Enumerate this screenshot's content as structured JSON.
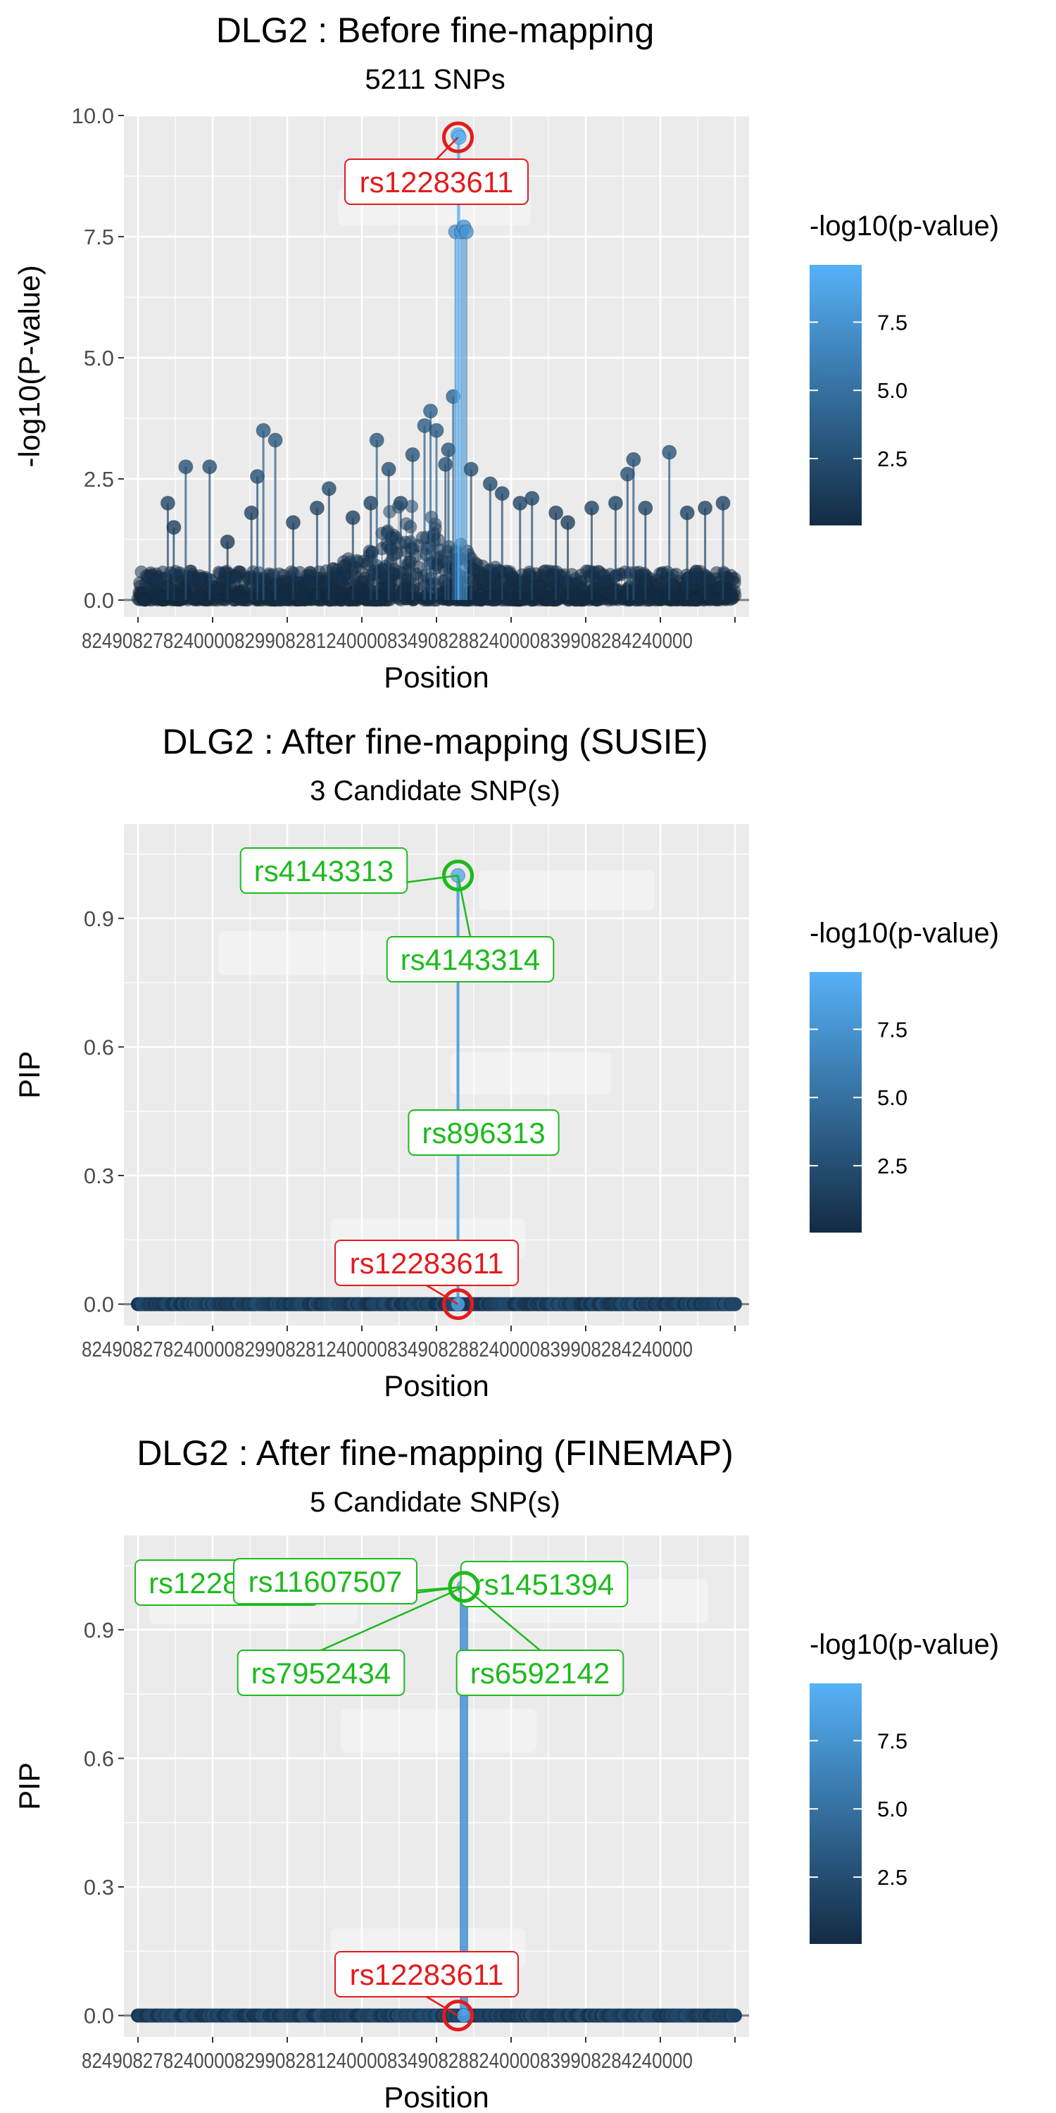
{
  "legend": {
    "title": "-log10(p-value)",
    "ticks": [
      2.5,
      5.0,
      7.5
    ],
    "range": [
      0.05,
      9.6
    ],
    "colors": {
      "low": "#132B43",
      "high": "#56B1F7"
    }
  },
  "chart_data": [
    {
      "type": "scatter",
      "title": "DLG2 : Before fine-mapping",
      "subtitle": "5211 SNPs",
      "xlabel": "Position",
      "ylabel": "-log10(P-value)",
      "ylim": [
        -0.35,
        10.0
      ],
      "y_ticks": [
        0.0,
        2.5,
        5.0,
        7.5,
        10.0
      ],
      "y_tick_labels": [
        "0.0",
        "2.5",
        "5.0",
        "7.5",
        "10.0"
      ],
      "x_tick_text": "824908278240000829908281240000834908288240000839908284240000",
      "grid": true,
      "legend_position": "right",
      "points": [
        {
          "x": 0.05,
          "y": 2.0
        },
        {
          "x": 0.06,
          "y": 1.5
        },
        {
          "x": 0.08,
          "y": 2.75
        },
        {
          "x": 0.12,
          "y": 2.75
        },
        {
          "x": 0.15,
          "y": 1.2
        },
        {
          "x": 0.19,
          "y": 1.8
        },
        {
          "x": 0.2,
          "y": 2.55
        },
        {
          "x": 0.21,
          "y": 3.5
        },
        {
          "x": 0.23,
          "y": 3.3
        },
        {
          "x": 0.26,
          "y": 1.6
        },
        {
          "x": 0.3,
          "y": 1.9
        },
        {
          "x": 0.32,
          "y": 2.3
        },
        {
          "x": 0.36,
          "y": 1.7
        },
        {
          "x": 0.39,
          "y": 2.0
        },
        {
          "x": 0.4,
          "y": 3.3
        },
        {
          "x": 0.42,
          "y": 2.7
        },
        {
          "x": 0.44,
          "y": 2.0
        },
        {
          "x": 0.46,
          "y": 3.0
        },
        {
          "x": 0.48,
          "y": 3.6
        },
        {
          "x": 0.49,
          "y": 3.9
        },
        {
          "x": 0.5,
          "y": 3.5
        },
        {
          "x": 0.515,
          "y": 2.8
        },
        {
          "x": 0.52,
          "y": 3.1
        },
        {
          "x": 0.528,
          "y": 4.2
        },
        {
          "x": 0.532,
          "y": 7.6
        },
        {
          "x": 0.536,
          "y": 9.6
        },
        {
          "x": 0.538,
          "y": 9.55
        },
        {
          "x": 0.542,
          "y": 7.6
        },
        {
          "x": 0.546,
          "y": 7.7
        },
        {
          "x": 0.55,
          "y": 7.6
        },
        {
          "x": 0.558,
          "y": 2.7
        },
        {
          "x": 0.59,
          "y": 2.4
        },
        {
          "x": 0.61,
          "y": 2.2
        },
        {
          "x": 0.64,
          "y": 2.0
        },
        {
          "x": 0.66,
          "y": 2.1
        },
        {
          "x": 0.7,
          "y": 1.8
        },
        {
          "x": 0.72,
          "y": 1.6
        },
        {
          "x": 0.76,
          "y": 1.9
        },
        {
          "x": 0.8,
          "y": 2.0
        },
        {
          "x": 0.82,
          "y": 2.6
        },
        {
          "x": 0.83,
          "y": 2.9
        },
        {
          "x": 0.85,
          "y": 1.9
        },
        {
          "x": 0.89,
          "y": 3.05
        },
        {
          "x": 0.92,
          "y": 1.8
        },
        {
          "x": 0.95,
          "y": 1.9
        },
        {
          "x": 0.98,
          "y": 2.0
        }
      ],
      "highlights": [
        {
          "label": "rs12283611",
          "x": 0.536,
          "y": 9.55,
          "color": "#E41A1C"
        }
      ]
    },
    {
      "type": "scatter",
      "title": "DLG2 : After fine-mapping (SUSIE)",
      "subtitle": "3 Candidate SNP(s)",
      "xlabel": "Position",
      "ylabel": "PIP",
      "ylim": [
        -0.05,
        1.12
      ],
      "y_ticks": [
        0.0,
        0.3,
        0.6,
        0.9
      ],
      "y_tick_labels": [
        "0.0",
        "0.3",
        "0.6",
        "0.9"
      ],
      "x_tick_text": "824908278240000829908281240000834908288240000839908284240000",
      "grid": true,
      "legend_position": "right",
      "points": [
        {
          "x": 0.536,
          "y": 1.0
        },
        {
          "x": 0.536,
          "y": 0.4
        },
        {
          "x": 0.536,
          "y": 0.0
        }
      ],
      "highlights": [
        {
          "label": "rs4143313",
          "x": 0.536,
          "y": 1.0,
          "color": "#1DBA1D"
        },
        {
          "label": "rs4143314",
          "x": 0.536,
          "y": 1.0,
          "color": "#1DBA1D"
        },
        {
          "label": "rs896313",
          "x": 0.536,
          "y": 0.4,
          "color": "#1DBA1D"
        },
        {
          "label": "rs12283611",
          "x": 0.536,
          "y": 0.0,
          "color": "#E41A1C"
        }
      ]
    },
    {
      "type": "scatter",
      "title": "DLG2 : After fine-mapping (FINEMAP)",
      "subtitle": "5 Candidate SNP(s)",
      "xlabel": "Position",
      "ylabel": "PIP",
      "ylim": [
        -0.05,
        1.12
      ],
      "y_ticks": [
        0.0,
        0.3,
        0.6,
        0.9
      ],
      "y_tick_labels": [
        "0.0",
        "0.3",
        "0.6",
        "0.9"
      ],
      "x_tick_text": "824908278240000829908281240000834908288240000839908284240000",
      "grid": true,
      "legend_position": "right",
      "points": [
        {
          "x": 0.546,
          "y": 1.0
        },
        {
          "x": 0.546,
          "y": 0.0
        }
      ],
      "highlights": [
        {
          "label": "rs12284617",
          "x": 0.546,
          "y": 1.0,
          "color": "#1DBA1D"
        },
        {
          "label": "rs11607507",
          "x": 0.546,
          "y": 1.0,
          "color": "#1DBA1D"
        },
        {
          "label": "rs1451394",
          "x": 0.546,
          "y": 1.0,
          "color": "#1DBA1D"
        },
        {
          "label": "rs7952434",
          "x": 0.546,
          "y": 1.0,
          "color": "#1DBA1D"
        },
        {
          "label": "rs6592142",
          "x": 0.546,
          "y": 1.0,
          "color": "#1DBA1D"
        },
        {
          "label": "rs12283611",
          "x": 0.536,
          "y": 0.0,
          "color": "#E41A1C"
        }
      ]
    }
  ]
}
